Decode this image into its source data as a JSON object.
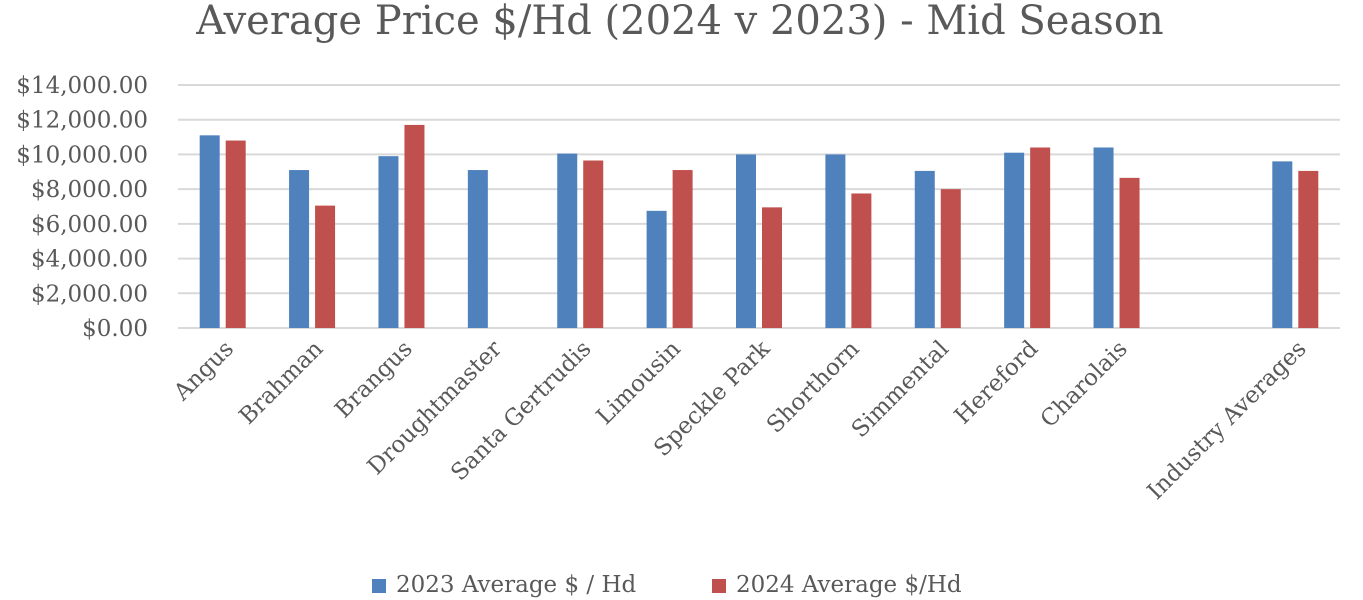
{
  "chart_data": {
    "type": "bar",
    "title": "Average Price $/Hd (2024 v 2023) - Mid Season",
    "xlabel": "",
    "ylabel": "",
    "ylim": [
      0,
      14000
    ],
    "yticks": [
      0,
      2000,
      4000,
      6000,
      8000,
      10000,
      12000,
      14000
    ],
    "ytick_labels": [
      "$0.00",
      "$2,000.00",
      "$4,000.00",
      "$6,000.00",
      "$8,000.00",
      "$10,000.00",
      "$12,000.00",
      "$14,000.00"
    ],
    "grid": true,
    "legend_position": "bottom",
    "categories": [
      "Angus",
      "Brahman",
      "Brangus",
      "Droughtmaster",
      "Santa Gertrudis",
      "Limousin",
      "Speckle Park",
      "Shorthorn",
      "Simmental",
      "Hereford",
      "Charolais",
      "",
      "Industry Averages"
    ],
    "series": [
      {
        "name": "2023 Average $ / Hd",
        "color": "#4f81bd",
        "values": [
          11100,
          9100,
          9900,
          9100,
          10050,
          6750,
          10000,
          10000,
          9050,
          10100,
          10400,
          null,
          9600
        ]
      },
      {
        "name": "2024 Average $/Hd",
        "color": "#c0504d",
        "values": [
          10800,
          7050,
          11700,
          null,
          9650,
          9100,
          6950,
          7750,
          8000,
          10400,
          8650,
          null,
          9050
        ]
      }
    ]
  }
}
